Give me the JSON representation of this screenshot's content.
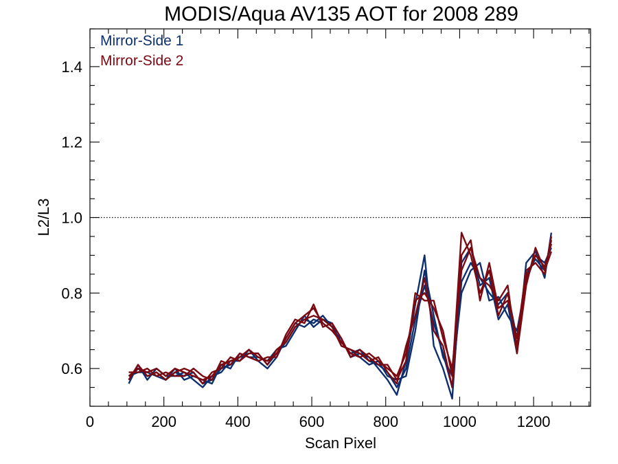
{
  "chart_data": {
    "type": "line",
    "title": "MODIS/Aqua AV135 AOT for 2008 289",
    "xlabel": "Scan Pixel",
    "ylabel": "L2/L3",
    "xlim": [
      0,
      1354
    ],
    "ylim": [
      0.5,
      1.5
    ],
    "xticks": [
      0,
      200,
      400,
      600,
      800,
      1000,
      1200
    ],
    "yticks": [
      0.6,
      0.8,
      1.0,
      1.2,
      1.4
    ],
    "xtick_labels": [
      "0",
      "200",
      "400",
      "600",
      "800",
      "1000",
      "1200"
    ],
    "ytick_labels": [
      "0.6",
      "0.8",
      "1.0",
      "1.2",
      "1.4"
    ],
    "reference_line": {
      "y": 1.0,
      "style": "dotted"
    },
    "legend_position": "top-left",
    "x": [
      105,
      130,
      155,
      180,
      205,
      230,
      255,
      280,
      305,
      330,
      355,
      380,
      405,
      430,
      455,
      480,
      505,
      530,
      555,
      580,
      605,
      630,
      655,
      680,
      705,
      730,
      755,
      780,
      805,
      830,
      855,
      880,
      905,
      930,
      955,
      980,
      1005,
      1030,
      1055,
      1080,
      1105,
      1130,
      1155,
      1180,
      1205,
      1230,
      1248
    ],
    "series": [
      {
        "name": "Mirror-Side 1",
        "color": "#0d2f6e",
        "lines": [
          [
            0.57,
            0.6,
            0.58,
            0.59,
            0.57,
            0.59,
            0.58,
            0.59,
            0.56,
            0.57,
            0.6,
            0.61,
            0.63,
            0.64,
            0.64,
            0.61,
            0.64,
            0.67,
            0.71,
            0.73,
            0.72,
            0.74,
            0.71,
            0.67,
            0.64,
            0.65,
            0.62,
            0.61,
            0.59,
            0.55,
            0.6,
            0.73,
            0.82,
            0.72,
            0.64,
            0.55,
            0.83,
            0.88,
            0.84,
            0.8,
            0.77,
            0.8,
            0.68,
            0.85,
            0.89,
            0.86,
            0.94
          ],
          [
            0.56,
            0.61,
            0.57,
            0.6,
            0.58,
            0.58,
            0.59,
            0.57,
            0.55,
            0.58,
            0.59,
            0.62,
            0.62,
            0.65,
            0.62,
            0.6,
            0.63,
            0.68,
            0.72,
            0.71,
            0.73,
            0.72,
            0.7,
            0.68,
            0.63,
            0.64,
            0.63,
            0.6,
            0.57,
            0.53,
            0.62,
            0.77,
            0.9,
            0.66,
            0.6,
            0.52,
            0.88,
            0.92,
            0.82,
            0.84,
            0.73,
            0.77,
            0.64,
            0.88,
            0.91,
            0.84,
            0.96
          ],
          [
            0.58,
            0.59,
            0.59,
            0.58,
            0.57,
            0.6,
            0.57,
            0.58,
            0.57,
            0.56,
            0.61,
            0.6,
            0.64,
            0.63,
            0.63,
            0.62,
            0.65,
            0.66,
            0.7,
            0.74,
            0.71,
            0.73,
            0.72,
            0.66,
            0.65,
            0.63,
            0.61,
            0.62,
            0.58,
            0.57,
            0.58,
            0.7,
            0.86,
            0.74,
            0.63,
            0.58,
            0.8,
            0.86,
            0.88,
            0.78,
            0.79,
            0.74,
            0.7,
            0.83,
            0.9,
            0.88,
            0.92
          ]
        ]
      },
      {
        "name": "Mirror-Side 2",
        "color": "#7a0a12",
        "lines": [
          [
            0.58,
            0.6,
            0.59,
            0.6,
            0.58,
            0.6,
            0.59,
            0.58,
            0.57,
            0.58,
            0.61,
            0.62,
            0.63,
            0.65,
            0.63,
            0.62,
            0.64,
            0.68,
            0.72,
            0.74,
            0.76,
            0.72,
            0.7,
            0.67,
            0.64,
            0.63,
            0.64,
            0.62,
            0.6,
            0.58,
            0.64,
            0.78,
            0.8,
            0.76,
            0.7,
            0.58,
            0.96,
            0.9,
            0.8,
            0.86,
            0.74,
            0.8,
            0.66,
            0.84,
            0.9,
            0.87,
            0.93
          ],
          [
            0.57,
            0.61,
            0.58,
            0.59,
            0.57,
            0.59,
            0.6,
            0.59,
            0.56,
            0.59,
            0.6,
            0.63,
            0.62,
            0.64,
            0.64,
            0.61,
            0.65,
            0.67,
            0.71,
            0.73,
            0.74,
            0.73,
            0.71,
            0.66,
            0.65,
            0.64,
            0.62,
            0.63,
            0.59,
            0.56,
            0.66,
            0.74,
            0.84,
            0.7,
            0.66,
            0.55,
            0.9,
            0.94,
            0.78,
            0.88,
            0.76,
            0.78,
            0.68,
            0.86,
            0.88,
            0.85,
            0.95
          ],
          [
            0.59,
            0.59,
            0.6,
            0.58,
            0.59,
            0.58,
            0.58,
            0.6,
            0.58,
            0.57,
            0.62,
            0.61,
            0.64,
            0.63,
            0.62,
            0.63,
            0.63,
            0.69,
            0.73,
            0.72,
            0.77,
            0.71,
            0.72,
            0.68,
            0.63,
            0.65,
            0.63,
            0.61,
            0.61,
            0.57,
            0.62,
            0.8,
            0.78,
            0.78,
            0.68,
            0.6,
            0.86,
            0.92,
            0.84,
            0.82,
            0.78,
            0.82,
            0.64,
            0.82,
            0.92,
            0.86,
            0.91
          ]
        ]
      }
    ]
  }
}
